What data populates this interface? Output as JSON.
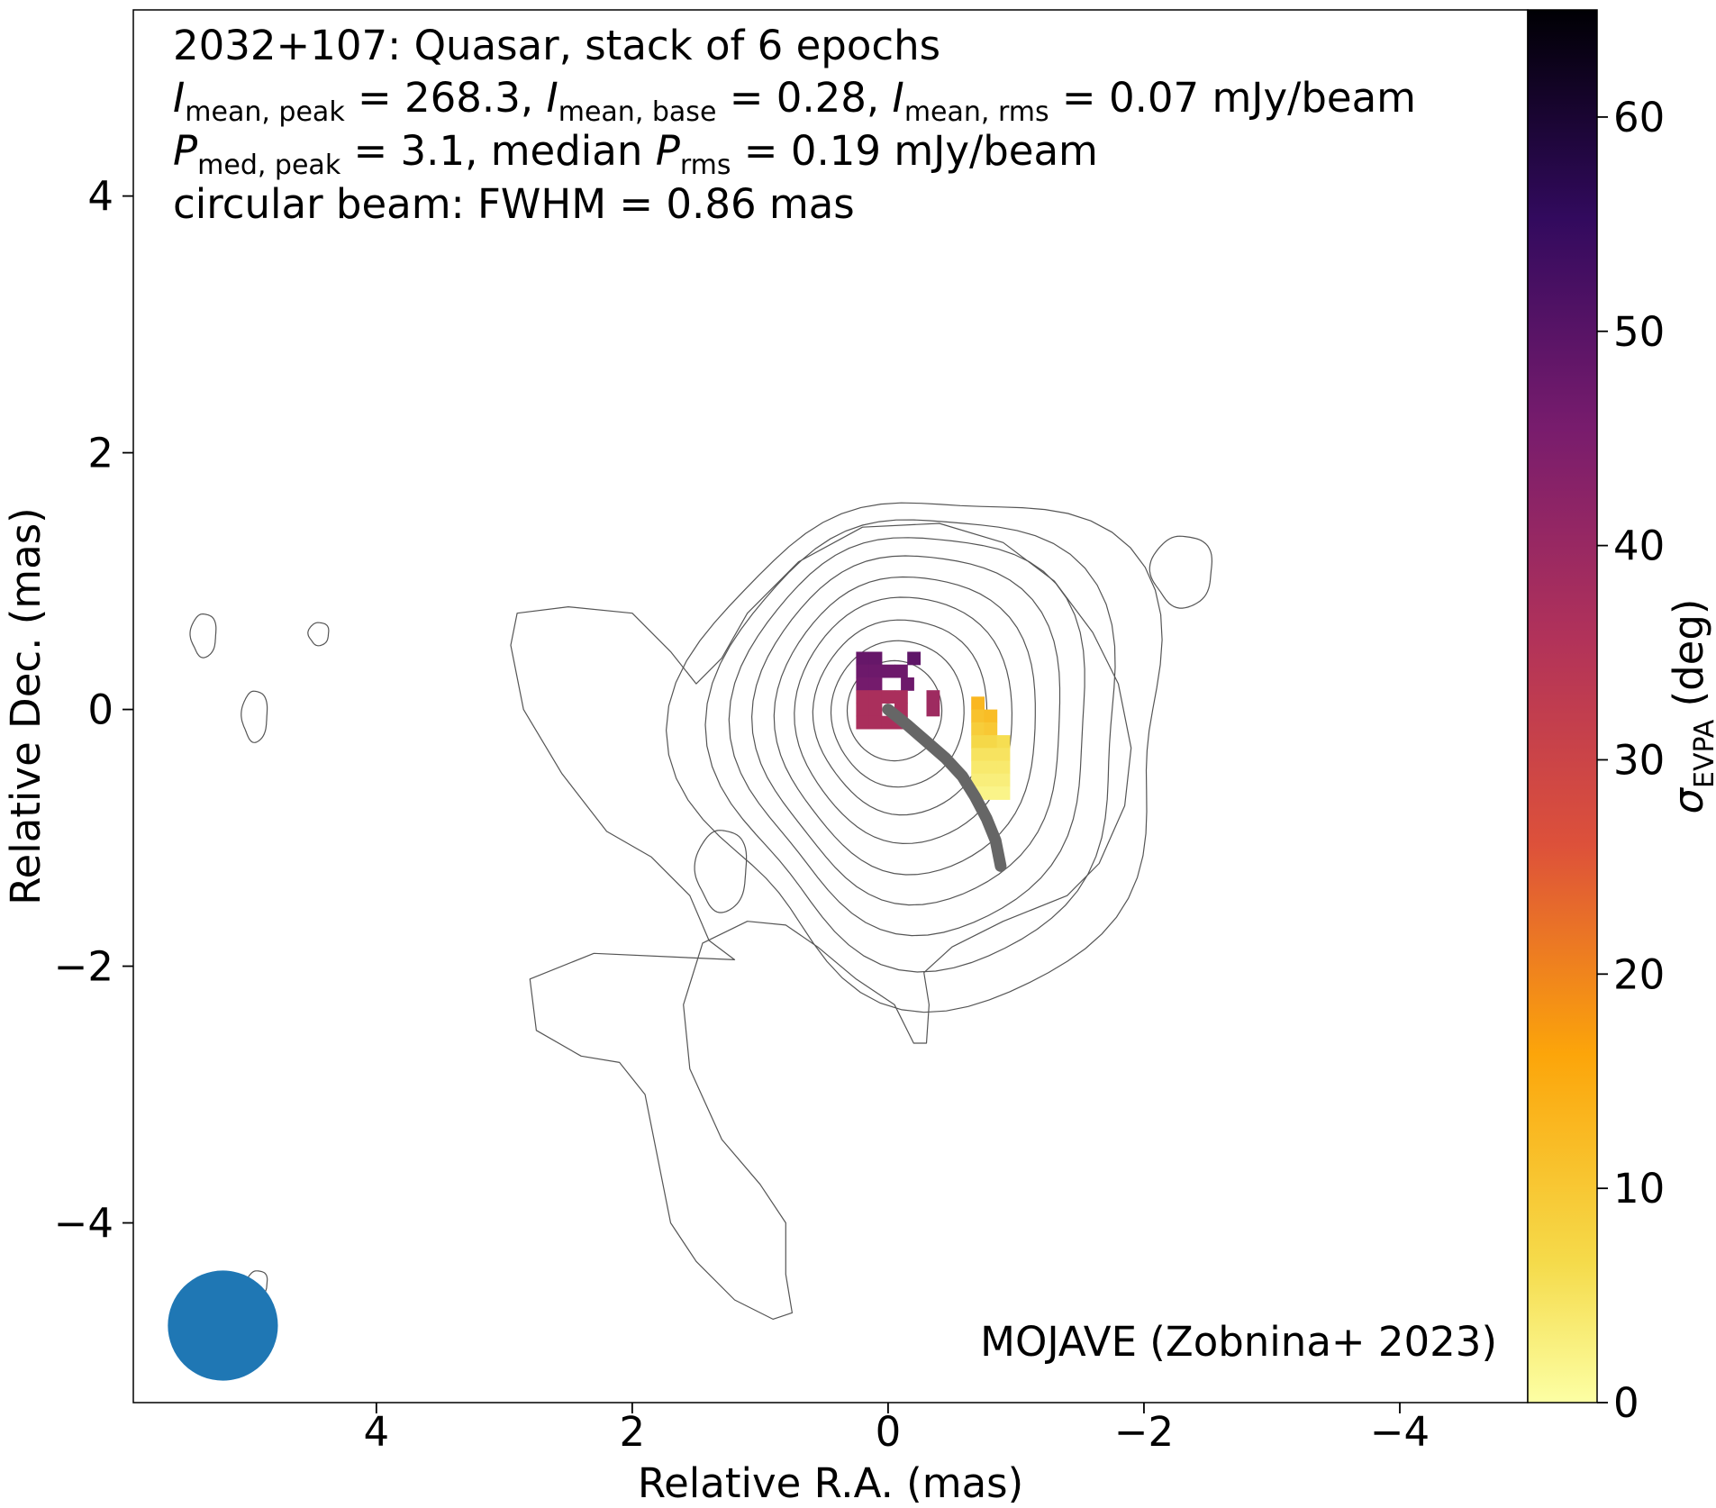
{
  "chart_data": {
    "type": "heatmap",
    "title_lines": [
      {
        "id": "line0",
        "segments": [
          {
            "t": "2032+107: Quasar, stack of 6 epochs"
          }
        ]
      },
      {
        "id": "line1",
        "segments": [
          {
            "t": "I",
            "style": "italic"
          },
          {
            "t": "mean, peak",
            "style": "sub"
          },
          {
            "t": " = 268.3, "
          },
          {
            "t": "I",
            "style": "italic"
          },
          {
            "t": "mean, base",
            "style": "sub"
          },
          {
            "t": " = 0.28, "
          },
          {
            "t": "I",
            "style": "italic"
          },
          {
            "t": "mean, rms",
            "style": "sub"
          },
          {
            "t": " = 0.07 mJy/beam"
          }
        ]
      },
      {
        "id": "line2",
        "segments": [
          {
            "t": "P",
            "style": "italic"
          },
          {
            "t": "med, peak",
            "style": "sub"
          },
          {
            "t": " = 3.1, median "
          },
          {
            "t": "P",
            "style": "italic"
          },
          {
            "t": "rms",
            "style": "sub"
          },
          {
            "t": " = 0.19 mJy/beam"
          }
        ]
      },
      {
        "id": "line3",
        "segments": [
          {
            "t": "circular beam: FWHM = 0.86 mas"
          }
        ]
      }
    ],
    "credit": "MOJAVE (Zobnina+ 2023)",
    "xlabel": "Relative R.A. (mas)",
    "ylabel": "Relative Dec. (mas)",
    "colorbar_label": {
      "symbol": "σ",
      "sub": "EVPA",
      "rest": " (deg)"
    },
    "xlim": [
      5.9,
      -5.0
    ],
    "ylim": [
      -5.4,
      5.45
    ],
    "x_ticks": [
      4,
      2,
      0,
      -2,
      -4
    ],
    "x_tick_labels": [
      "4",
      "2",
      "0",
      "−2",
      "−4"
    ],
    "y_ticks": [
      4,
      2,
      0,
      -2,
      -4
    ],
    "y_tick_labels": [
      "4",
      "2",
      "0",
      "−2",
      "−4"
    ],
    "colorbar_range": [
      0,
      65
    ],
    "colorbar_ticks": [
      0,
      10,
      20,
      30,
      40,
      50,
      60
    ],
    "colorbar_tick_labels": [
      "0",
      "10",
      "20",
      "30",
      "40",
      "50",
      "60"
    ],
    "colormap": "inferno_r",
    "beam": {
      "center": [
        5.2,
        -4.8
      ],
      "fwhm": 0.86,
      "color": "#1f77b4"
    },
    "pixel_size_mas": 0.1,
    "pixels": [
      [
        0.2,
        0.4,
        48
      ],
      [
        0.1,
        0.4,
        48
      ],
      [
        -0.2,
        0.4,
        49
      ],
      [
        0.2,
        0.3,
        47
      ],
      [
        0.1,
        0.3,
        47
      ],
      [
        0.0,
        0.3,
        47
      ],
      [
        -0.1,
        0.3,
        47
      ],
      [
        0.2,
        0.2,
        46
      ],
      [
        0.1,
        0.2,
        46
      ],
      [
        -0.15,
        0.2,
        47
      ],
      [
        0.2,
        0.1,
        37
      ],
      [
        0.1,
        0.1,
        37
      ],
      [
        0.0,
        0.1,
        37
      ],
      [
        -0.1,
        0.1,
        37
      ],
      [
        -0.35,
        0.1,
        39
      ],
      [
        0.2,
        0.0,
        37
      ],
      [
        0.1,
        0.0,
        37
      ],
      [
        -0.1,
        0.0,
        37
      ],
      [
        -0.35,
        0.0,
        39
      ],
      [
        0.2,
        -0.1,
        37
      ],
      [
        0.1,
        -0.1,
        37
      ],
      [
        0.0,
        -0.1,
        37
      ],
      [
        -0.1,
        -0.1,
        37
      ],
      [
        -0.7,
        0.05,
        13
      ],
      [
        -0.7,
        -0.05,
        11
      ],
      [
        -0.8,
        -0.05,
        12
      ],
      [
        -0.7,
        -0.15,
        9
      ],
      [
        -0.8,
        -0.15,
        10
      ],
      [
        -0.7,
        -0.25,
        7
      ],
      [
        -0.8,
        -0.25,
        7
      ],
      [
        -0.9,
        -0.25,
        6
      ],
      [
        -0.7,
        -0.35,
        5
      ],
      [
        -0.8,
        -0.35,
        5
      ],
      [
        -0.9,
        -0.35,
        5
      ],
      [
        -0.7,
        -0.45,
        4
      ],
      [
        -0.8,
        -0.45,
        4
      ],
      [
        -0.9,
        -0.45,
        4
      ],
      [
        -0.7,
        -0.55,
        3
      ],
      [
        -0.8,
        -0.55,
        3
      ],
      [
        -0.9,
        -0.55,
        3
      ],
      [
        -0.7,
        -0.65,
        2
      ],
      [
        -0.8,
        -0.65,
        2
      ],
      [
        -0.9,
        -0.65,
        2
      ]
    ],
    "jet_ridge": [
      [
        0.0,
        0.0
      ],
      [
        -0.15,
        -0.12
      ],
      [
        -0.3,
        -0.25
      ],
      [
        -0.45,
        -0.38
      ],
      [
        -0.58,
        -0.52
      ],
      [
        -0.68,
        -0.68
      ],
      [
        -0.77,
        -0.85
      ],
      [
        -0.84,
        -1.02
      ],
      [
        -0.88,
        -1.22
      ]
    ],
    "contour_rings": [
      {
        "cx": -0.35,
        "cy": -0.25,
        "rx": 1.88,
        "ry": 1.98,
        "a": -0.05,
        "n": 0.08
      },
      {
        "cx": -0.28,
        "cy": -0.2,
        "rx": 1.58,
        "ry": 1.76,
        "a": -0.05,
        "n": 0.06
      },
      {
        "cx": -0.23,
        "cy": -0.15,
        "rx": 1.38,
        "ry": 1.55,
        "a": -0.05,
        "n": 0.05
      },
      {
        "cx": -0.2,
        "cy": -0.12,
        "rx": 1.2,
        "ry": 1.36,
        "a": -0.05,
        "n": 0.04
      },
      {
        "cx": -0.17,
        "cy": -0.1,
        "rx": 1.02,
        "ry": 1.16,
        "a": -0.05,
        "n": 0.03
      },
      {
        "cx": -0.14,
        "cy": -0.07,
        "rx": 0.85,
        "ry": 0.96,
        "a": -0.05,
        "n": 0.02
      },
      {
        "cx": -0.11,
        "cy": -0.05,
        "rx": 0.68,
        "ry": 0.76,
        "a": -0.05,
        "n": 0.02
      },
      {
        "cx": -0.08,
        "cy": -0.03,
        "rx": 0.52,
        "ry": 0.57,
        "a": 0.0,
        "n": 0.01
      },
      {
        "cx": -0.05,
        "cy": -0.01,
        "rx": 0.37,
        "ry": 0.39,
        "a": 0.0,
        "n": 0.0
      }
    ],
    "contour_outer": [
      [
        -1.8,
        0.2
      ],
      [
        -1.6,
        0.6
      ],
      [
        -1.3,
        1.0
      ],
      [
        -0.9,
        1.3
      ],
      [
        -0.4,
        1.45
      ],
      [
        0.2,
        1.42
      ],
      [
        0.7,
        1.15
      ],
      [
        1.1,
        0.75
      ],
      [
        1.3,
        0.4
      ],
      [
        1.5,
        0.2
      ],
      [
        1.7,
        0.45
      ],
      [
        2.0,
        0.75
      ],
      [
        2.5,
        0.8
      ],
      [
        2.9,
        0.75
      ],
      [
        2.95,
        0.5
      ],
      [
        2.85,
        0.0
      ],
      [
        2.55,
        -0.5
      ],
      [
        2.2,
        -0.95
      ],
      [
        1.85,
        -1.15
      ],
      [
        1.55,
        -1.45
      ],
      [
        1.4,
        -1.8
      ],
      [
        1.2,
        -1.95
      ],
      [
        2.3,
        -1.9
      ],
      [
        2.8,
        -2.1
      ],
      [
        2.75,
        -2.5
      ],
      [
        2.4,
        -2.7
      ],
      [
        2.1,
        -2.75
      ],
      [
        1.9,
        -3.0
      ],
      [
        1.8,
        -3.5
      ],
      [
        1.7,
        -4.0
      ],
      [
        1.5,
        -4.3
      ],
      [
        1.2,
        -4.6
      ],
      [
        0.9,
        -4.75
      ],
      [
        0.75,
        -4.7
      ],
      [
        0.8,
        -4.4
      ],
      [
        0.8,
        -4.0
      ],
      [
        1.0,
        -3.7
      ],
      [
        1.3,
        -3.35
      ],
      [
        1.55,
        -2.8
      ],
      [
        1.6,
        -2.3
      ],
      [
        1.45,
        -1.82
      ],
      [
        1.1,
        -1.65
      ],
      [
        0.8,
        -1.68
      ],
      [
        0.55,
        -1.85
      ],
      [
        0.25,
        -2.1
      ],
      [
        -0.05,
        -2.3
      ],
      [
        -0.2,
        -2.6
      ],
      [
        -0.3,
        -2.6
      ],
      [
        -0.32,
        -2.3
      ],
      [
        -0.28,
        -2.05
      ],
      [
        -0.5,
        -1.85
      ],
      [
        -0.9,
        -1.65
      ],
      [
        -1.4,
        -1.45
      ],
      [
        -1.65,
        -1.2
      ],
      [
        -1.85,
        -0.75
      ],
      [
        -1.9,
        -0.3
      ]
    ],
    "contour_islands": [
      {
        "cx": -2.3,
        "cy": 1.08,
        "rx": 0.24,
        "ry": 0.28
      },
      {
        "cx": 5.35,
        "cy": 0.58,
        "rx": 0.1,
        "ry": 0.17
      },
      {
        "cx": 4.45,
        "cy": 0.59,
        "rx": 0.08,
        "ry": 0.09
      },
      {
        "cx": 4.95,
        "cy": -0.05,
        "rx": 0.1,
        "ry": 0.2
      },
      {
        "cx": 1.3,
        "cy": -1.25,
        "rx": 0.2,
        "ry": 0.32
      },
      {
        "cx": 4.93,
        "cy": -4.47,
        "rx": 0.08,
        "ry": 0.1
      }
    ]
  }
}
